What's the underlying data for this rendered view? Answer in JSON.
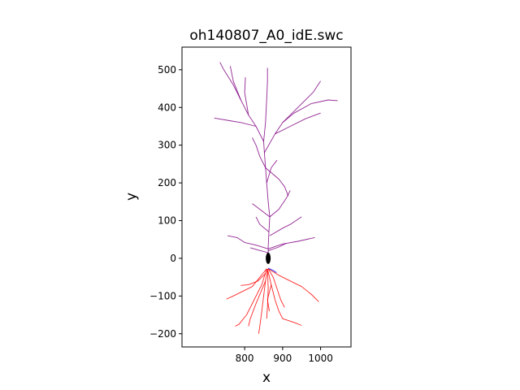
{
  "chart_data": {
    "type": "scatter",
    "title": "oh140807_A0_idE.swc",
    "xlabel": "x",
    "ylabel": "y",
    "xlim": [
      635,
      1080
    ],
    "ylim": [
      -235,
      560
    ],
    "xticks": [
      800,
      900,
      1000
    ],
    "yticks": [
      -200,
      -100,
      0,
      100,
      200,
      300,
      400,
      500
    ],
    "grid": false,
    "legend": "none",
    "soma": {
      "x": 862,
      "y": 0
    },
    "series": [
      {
        "color": "#800080",
        "branches": [
          [
            [
              862,
              5
            ],
            [
              862,
              30
            ],
            [
              864,
              70
            ],
            [
              866,
              110
            ],
            [
              862,
              150
            ],
            [
              858,
              200
            ],
            [
              855,
              240
            ],
            [
              852,
              280
            ],
            [
              850,
              310
            ]
          ],
          [
            [
              850,
              310
            ],
            [
              830,
              350
            ],
            [
              810,
              380
            ],
            [
              790,
              420
            ],
            [
              770,
              460
            ],
            [
              745,
              500
            ],
            [
              735,
              520
            ]
          ],
          [
            [
              790,
              420
            ],
            [
              770,
              470
            ],
            [
              762,
              510
            ]
          ],
          [
            [
              810,
              380
            ],
            [
              800,
              440
            ],
            [
              802,
              480
            ]
          ],
          [
            [
              850,
              310
            ],
            [
              855,
              360
            ],
            [
              858,
              420
            ],
            [
              860,
              470
            ],
            [
              860,
              505
            ]
          ],
          [
            [
              852,
              280
            ],
            [
              880,
              330
            ],
            [
              900,
              360
            ],
            [
              940,
              400
            ],
            [
              980,
              440
            ],
            [
              1000,
              470
            ]
          ],
          [
            [
              880,
              330
            ],
            [
              920,
              350
            ],
            [
              960,
              370
            ],
            [
              1000,
              385
            ]
          ],
          [
            [
              900,
              360
            ],
            [
              930,
              385
            ],
            [
              975,
              410
            ],
            [
              1020,
              420
            ],
            [
              1045,
              418
            ]
          ],
          [
            [
              830,
              350
            ],
            [
              790,
              360
            ],
            [
              760,
              365
            ],
            [
              720,
              372
            ]
          ],
          [
            [
              855,
              240
            ],
            [
              840,
              270
            ],
            [
              830,
              300
            ],
            [
              820,
              320
            ]
          ],
          [
            [
              858,
              200
            ],
            [
              870,
              240
            ],
            [
              885,
              260
            ]
          ],
          [
            [
              855,
              240
            ],
            [
              890,
              210
            ],
            [
              905,
              190
            ],
            [
              915,
              165
            ]
          ],
          [
            [
              866,
              110
            ],
            [
              890,
              130
            ],
            [
              910,
              160
            ],
            [
              920,
              180
            ]
          ],
          [
            [
              866,
              110
            ],
            [
              840,
              130
            ],
            [
              820,
              145
            ]
          ],
          [
            [
              866,
              60
            ],
            [
              900,
              80
            ],
            [
              920,
              90
            ],
            [
              950,
              110
            ]
          ],
          [
            [
              864,
              70
            ],
            [
              840,
              90
            ],
            [
              830,
              110
            ]
          ],
          [
            [
              862,
              25
            ],
            [
              900,
              38
            ],
            [
              940,
              45
            ],
            [
              985,
              55
            ]
          ],
          [
            [
              862,
              25
            ],
            [
              830,
              35
            ],
            [
              800,
              42
            ],
            [
              780,
              55
            ],
            [
              755,
              60
            ]
          ],
          [
            [
              862,
              20
            ],
            [
              890,
              30
            ],
            [
              910,
              40
            ]
          ],
          [
            [
              862,
              15
            ],
            [
              835,
              22
            ],
            [
              815,
              28
            ]
          ]
        ]
      },
      {
        "color": "#ff0000",
        "branches": [
          [
            [
              860,
              -28
            ],
            [
              855,
              -60
            ],
            [
              850,
              -100
            ],
            [
              845,
              -140
            ],
            [
              840,
              -180
            ],
            [
              837,
              -200
            ]
          ],
          [
            [
              860,
              -28
            ],
            [
              870,
              -70
            ],
            [
              880,
              -110
            ],
            [
              890,
              -140
            ],
            [
              900,
              -160
            ],
            [
              930,
              -170
            ],
            [
              950,
              -178
            ]
          ],
          [
            [
              858,
              -28
            ],
            [
              840,
              -50
            ],
            [
              820,
              -75
            ],
            [
              790,
              -90
            ],
            [
              770,
              -100
            ],
            [
              752,
              -108
            ]
          ],
          [
            [
              858,
              -28
            ],
            [
              845,
              -70
            ],
            [
              825,
              -110
            ],
            [
              805,
              -150
            ],
            [
              785,
              -175
            ],
            [
              775,
              -180
            ]
          ],
          [
            [
              862,
              -28
            ],
            [
              890,
              -45
            ],
            [
              920,
              -60
            ],
            [
              950,
              -75
            ],
            [
              975,
              -95
            ],
            [
              995,
              -115
            ]
          ],
          [
            [
              862,
              -28
            ],
            [
              875,
              -50
            ],
            [
              885,
              -80
            ],
            [
              895,
              -110
            ],
            [
              905,
              -130
            ]
          ],
          [
            [
              855,
              -40
            ],
            [
              835,
              -60
            ],
            [
              810,
              -70
            ],
            [
              790,
              -72
            ]
          ],
          [
            [
              860,
              -28
            ],
            [
              862,
              -80
            ],
            [
              860,
              -130
            ],
            [
              858,
              -160
            ]
          ],
          [
            [
              855,
              -60
            ],
            [
              830,
              -120
            ],
            [
              815,
              -160
            ],
            [
              810,
              -180
            ]
          ],
          [
            [
              870,
              -70
            ],
            [
              860,
              -110
            ],
            [
              865,
              -140
            ]
          ]
        ]
      },
      {
        "color": "#0000ff",
        "branches": [
          [
            [
              862,
              -26
            ],
            [
              870,
              -30
            ],
            [
              878,
              -34
            ],
            [
              884,
              -38
            ]
          ]
        ]
      }
    ]
  }
}
